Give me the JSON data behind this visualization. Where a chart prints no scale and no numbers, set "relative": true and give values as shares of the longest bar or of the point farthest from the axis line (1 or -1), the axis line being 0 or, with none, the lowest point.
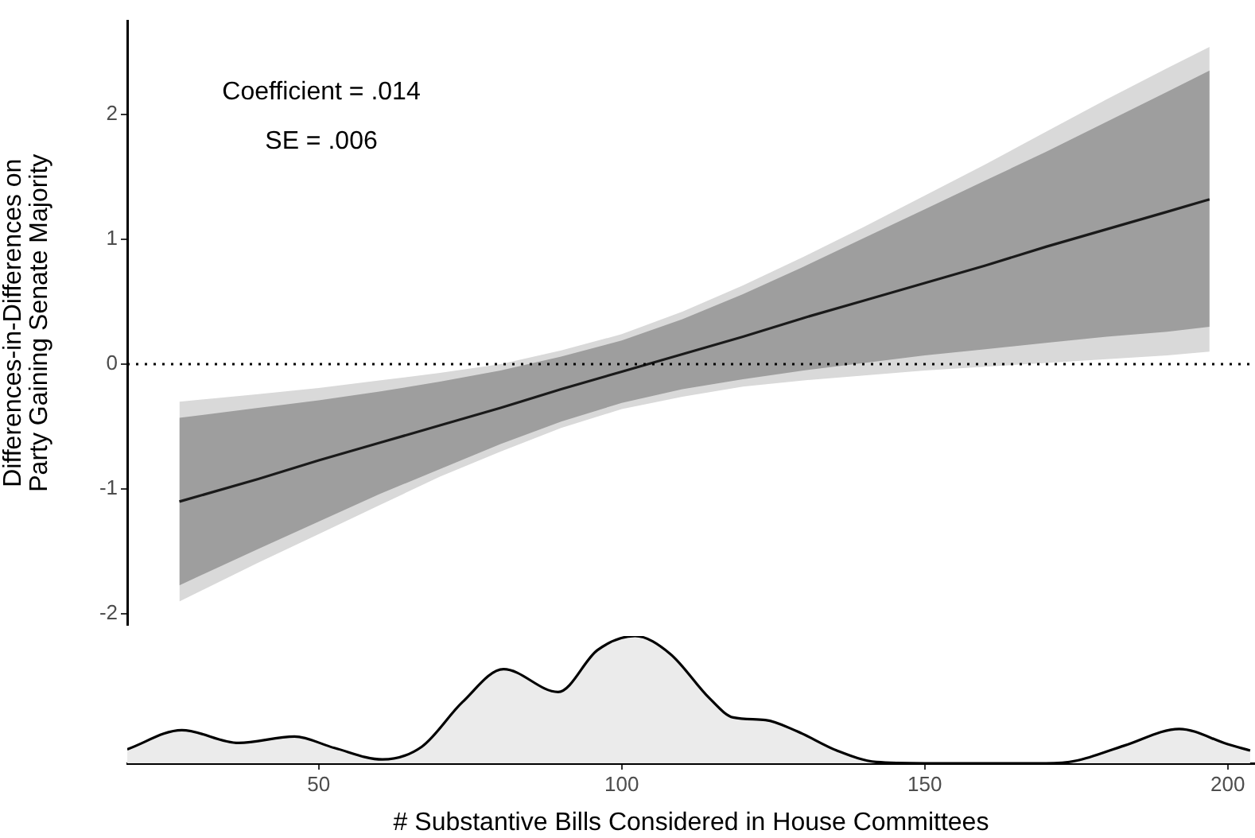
{
  "chart_data": [
    {
      "type": "line",
      "ylabel": "Differences-in-Differences on\nParty Gaining Senate Majority",
      "annotations": [
        "Coefficient = .014",
        "SE = .006"
      ],
      "x": [
        27,
        40,
        50,
        60,
        70,
        80,
        90,
        100,
        110,
        120,
        130,
        140,
        150,
        160,
        170,
        180,
        190,
        197
      ],
      "series": [
        {
          "color": "#d9d9d9",
          "values": [
            null,
            null,
            null,
            null,
            null,
            null,
            null,
            null,
            null,
            null,
            null,
            null,
            null,
            null,
            null,
            null,
            null,
            null
          ],
          "lower": [
            -1.9,
            -1.59,
            -1.36,
            -1.13,
            -0.9,
            -0.7,
            -0.51,
            -0.36,
            -0.26,
            -0.18,
            -0.13,
            -0.09,
            -0.05,
            -0.02,
            0.01,
            0.04,
            0.07,
            0.1
          ],
          "upper": [
            -0.3,
            -0.24,
            -0.19,
            -0.13,
            -0.07,
            0.0,
            0.11,
            0.24,
            0.42,
            0.63,
            0.86,
            1.1,
            1.35,
            1.6,
            1.86,
            2.12,
            2.37,
            2.54
          ]
        },
        {
          "color": "#9e9e9e",
          "values": [
            null,
            null,
            null,
            null,
            null,
            null,
            null,
            null,
            null,
            null,
            null,
            null,
            null,
            null,
            null,
            null,
            null,
            null
          ],
          "lower": [
            -1.77,
            -1.48,
            -1.26,
            -1.04,
            -0.84,
            -0.64,
            -0.46,
            -0.31,
            -0.2,
            -0.12,
            -0.05,
            0.01,
            0.07,
            0.12,
            0.17,
            0.22,
            0.26,
            0.3
          ],
          "upper": [
            -0.43,
            -0.35,
            -0.29,
            -0.22,
            -0.14,
            -0.05,
            0.06,
            0.19,
            0.36,
            0.56,
            0.78,
            1.01,
            1.24,
            1.47,
            1.7,
            1.94,
            2.18,
            2.35
          ]
        },
        {
          "color": "#1a1a1a",
          "values": [
            -1.1,
            -0.92,
            -0.77,
            -0.63,
            -0.49,
            -0.35,
            -0.2,
            -0.06,
            0.08,
            0.22,
            0.37,
            0.51,
            0.65,
            0.79,
            0.94,
            1.08,
            1.22,
            1.32
          ]
        }
      ],
      "ref_lines": [
        {
          "axis": "y",
          "value": 0,
          "color": "#000000",
          "line_style": "dotted"
        }
      ],
      "xlim": [
        18.4,
        204.5
      ],
      "ylim": [
        -2.09,
        2.75
      ],
      "yticks": [
        -2,
        -1,
        0,
        1,
        2
      ],
      "tick_labels": "y"
    },
    {
      "type": "area",
      "relative": true,
      "xlabel": "# Substantive Bills Considered in House Committees",
      "x": [
        18.4,
        27.4,
        36.8,
        46,
        52.6,
        60.5,
        67,
        73.7,
        80.5,
        89.5,
        96,
        102.2,
        108,
        114.5,
        118.4,
        123.7,
        129,
        135.5,
        142,
        150,
        160,
        170,
        175,
        183,
        192,
        200,
        203.7
      ],
      "series": [
        {
          "color": "#ebebeb",
          "values": [
            0.11,
            0.26,
            0.16,
            0.21,
            0.12,
            0.03,
            0.13,
            0.48,
            0.74,
            0.56,
            0.89,
            1,
            0.86,
            0.51,
            0.36,
            0.34,
            0.25,
            0.1,
            0.01,
            0,
            0,
            0,
            0.02,
            0.14,
            0.27,
            0.15,
            0.1
          ]
        }
      ],
      "xlim": [
        18.4,
        204.5
      ],
      "xticks": [
        50,
        100,
        150,
        200
      ],
      "tick_labels": "x"
    }
  ]
}
